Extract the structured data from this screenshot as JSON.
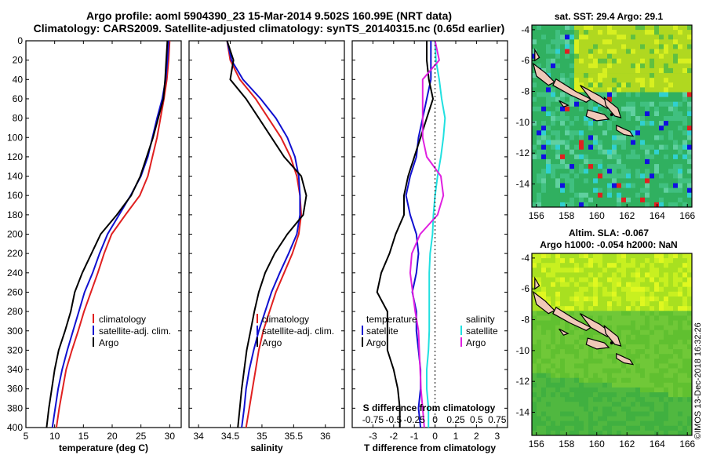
{
  "title_line1": "Argo profile: aoml 5904390_23 15-Mar-2014 9.502S 160.99E (NRT data)",
  "title_line2": "Climatology: CARS2009. Satellite-adjusted climatology: synTS_20140315.nc (0.65d earlier)",
  "watermark": "©IMOS 13-Dec-2018 16:32:26",
  "colors": {
    "climatology": "#e02020",
    "satellite": "#1010d0",
    "argo": "#000000",
    "salinity_sat": "#20e0e0",
    "salinity_argo": "#e020e0"
  },
  "chart_data": [
    {
      "type": "line",
      "name": "temperature",
      "xlabel": "temperature (deg C)",
      "ylabel": "",
      "xlim": [
        5,
        32
      ],
      "ylim": [
        400,
        0
      ],
      "x_ticks": [
        "5",
        "10",
        "15",
        "20",
        "25",
        "30"
      ],
      "y_ticks": [
        "0",
        "20",
        "40",
        "60",
        "80",
        "100",
        "120",
        "140",
        "160",
        "180",
        "200",
        "220",
        "240",
        "260",
        "280",
        "300",
        "320",
        "340",
        "360",
        "380",
        "400"
      ],
      "legend": [
        "climatology",
        "satellite-adj. clim.",
        "Argo"
      ],
      "depth": [
        0,
        20,
        40,
        60,
        80,
        100,
        120,
        140,
        160,
        180,
        200,
        220,
        240,
        260,
        280,
        300,
        320,
        340,
        360,
        380,
        400
      ],
      "series": [
        {
          "name": "climatology",
          "values": [
            30.0,
            29.8,
            29.5,
            29.0,
            28.4,
            27.8,
            27.0,
            26.2,
            24.8,
            22.3,
            19.9,
            18.6,
            17.5,
            16.3,
            15.1,
            14.1,
            13.0,
            12.0,
            11.4,
            10.8,
            10.3
          ]
        },
        {
          "name": "satellite-adj. clim.",
          "values": [
            29.8,
            29.6,
            29.3,
            28.7,
            27.8,
            27.0,
            26.2,
            25.0,
            23.2,
            21.2,
            19.2,
            17.8,
            16.6,
            15.2,
            14.2,
            13.2,
            12.2,
            11.3,
            10.6,
            10.1,
            9.6
          ]
        },
        {
          "name": "Argo",
          "values": [
            29.6,
            29.4,
            29.2,
            28.9,
            28.0,
            27.1,
            26.0,
            24.9,
            23.3,
            20.8,
            18.0,
            16.4,
            14.8,
            13.5,
            12.8,
            11.8,
            10.7,
            10.0,
            9.5,
            9.0,
            8.6
          ]
        }
      ]
    },
    {
      "type": "line",
      "name": "salinity",
      "xlabel": "salinity",
      "xlim": [
        33.85,
        36.3
      ],
      "ylim": [
        400,
        0
      ],
      "x_ticks": [
        "34",
        "34.5",
        "35",
        "35.5",
        "36"
      ],
      "legend": [
        "climatology",
        "satellite-adj. clim.",
        "Argo"
      ],
      "depth": [
        0,
        20,
        40,
        60,
        80,
        100,
        120,
        140,
        160,
        180,
        200,
        220,
        240,
        260,
        280,
        300,
        320,
        340,
        360,
        380,
        400
      ],
      "series": [
        {
          "name": "climatology",
          "values": [
            34.45,
            34.5,
            34.65,
            34.9,
            35.1,
            35.3,
            35.45,
            35.55,
            35.6,
            35.62,
            35.58,
            35.48,
            35.35,
            35.22,
            35.12,
            35.02,
            34.95,
            34.9,
            34.85,
            34.8,
            34.75
          ]
        },
        {
          "name": "satellite-adj. clim.",
          "values": [
            34.45,
            34.52,
            34.7,
            34.98,
            35.22,
            35.4,
            35.52,
            35.58,
            35.6,
            35.6,
            35.55,
            35.42,
            35.28,
            35.15,
            35.05,
            34.95,
            34.87,
            34.8,
            34.75,
            34.72,
            34.68
          ]
        },
        {
          "name": "Argo",
          "values": [
            34.45,
            34.55,
            34.5,
            34.75,
            34.95,
            35.15,
            35.35,
            35.62,
            35.7,
            35.65,
            35.4,
            35.2,
            35.05,
            34.95,
            34.88,
            34.82,
            34.76,
            34.72,
            34.68,
            34.65,
            34.62
          ]
        }
      ]
    },
    {
      "type": "line",
      "name": "difference",
      "xlabel": "T difference from climatology",
      "xlabel_top": "S difference from climatology",
      "xlim": [
        -4,
        3.5
      ],
      "ylim": [
        400,
        0
      ],
      "x_ticks": [
        "-3",
        "-2",
        "-1",
        "0",
        "1",
        "2",
        "3"
      ],
      "x_ticks_top": [
        "-0.75",
        "-0.5",
        "-0.25",
        "0",
        "0.25",
        "0.5",
        "0.75"
      ],
      "legend_temperature": [
        "temperature",
        "satellite",
        "Argo"
      ],
      "legend_salinity": [
        "salinity",
        "satellite",
        "Argo"
      ],
      "depth": [
        0,
        20,
        40,
        60,
        80,
        100,
        120,
        140,
        160,
        180,
        200,
        220,
        240,
        260,
        280,
        300,
        320,
        340,
        360,
        380,
        400
      ],
      "series": [
        {
          "name": "temperature satellite",
          "values": [
            -0.2,
            -0.2,
            -0.2,
            -0.4,
            -0.6,
            -0.8,
            -0.9,
            -1.2,
            -1.4,
            -1.2,
            -0.9,
            -0.8,
            -0.9,
            -1.1,
            -0.9,
            -0.9,
            -0.8,
            -0.7,
            -0.7,
            -0.8,
            -0.7
          ]
        },
        {
          "name": "temperature Argo",
          "values": [
            -0.4,
            -0.4,
            -0.3,
            -0.1,
            -0.4,
            -0.7,
            -1.0,
            -1.3,
            -1.5,
            -1.5,
            -1.9,
            -2.2,
            -2.6,
            -2.8,
            -2.3,
            -2.3,
            -2.3,
            -2.0,
            -1.8,
            -1.7,
            -1.7
          ]
        },
        {
          "name": "salinity satellite",
          "values": [
            0.0,
            0.01,
            0.05,
            0.08,
            0.12,
            0.1,
            0.07,
            0.03,
            0.0,
            -0.02,
            -0.03,
            -0.06,
            -0.07,
            -0.07,
            -0.07,
            -0.07,
            -0.08,
            -0.1,
            -0.1,
            -0.08,
            -0.08
          ]
        },
        {
          "name": "salinity Argo",
          "values": [
            0.0,
            0.05,
            -0.15,
            -0.15,
            -0.15,
            -0.15,
            -0.1,
            0.07,
            0.1,
            0.03,
            -0.18,
            -0.28,
            -0.3,
            -0.27,
            -0.24,
            -0.2,
            -0.19,
            -0.18,
            -0.17,
            -0.15,
            -0.13
          ]
        }
      ]
    },
    {
      "type": "heatmap",
      "name": "sst_map",
      "title": "sat. SST: 29.4 Argo: 29.1",
      "xlim": [
        155.7,
        166.3
      ],
      "ylim": [
        -15.5,
        -3.7
      ],
      "x_ticks": [
        "156",
        "158",
        "160",
        "162",
        "164",
        "166"
      ],
      "y_ticks": [
        "-4",
        "-6",
        "-8",
        "-10",
        "-12",
        "-14"
      ],
      "argo_position": [
        160.99,
        -9.502
      ]
    },
    {
      "type": "heatmap",
      "name": "sla_map",
      "title": "Altim. SLA: -0.067",
      "subtitle": "Argo h1000: -0.054 h2000: NaN",
      "xlim": [
        155.7,
        166.3
      ],
      "ylim": [
        -15.5,
        -3.7
      ],
      "x_ticks": [
        "156",
        "158",
        "160",
        "162",
        "164",
        "166"
      ],
      "y_ticks": [
        "-4",
        "-6",
        "-8",
        "-10",
        "-12",
        "-14"
      ],
      "argo_position": [
        160.99,
        -9.502
      ]
    }
  ]
}
